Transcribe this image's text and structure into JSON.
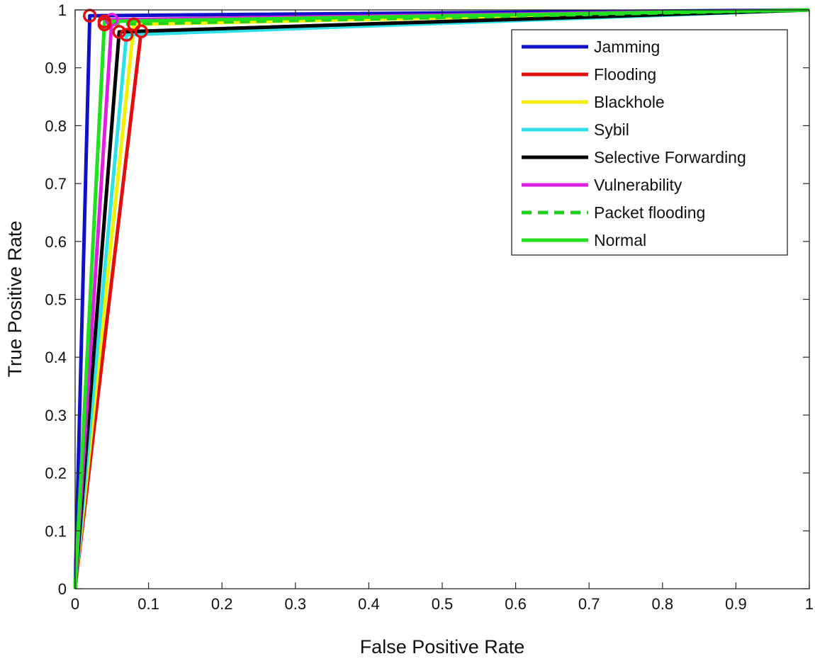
{
  "chart_data": {
    "type": "line",
    "title": "",
    "xlabel": "False Positive Rate",
    "ylabel": "True Positive Rate",
    "xlim": [
      0,
      1
    ],
    "ylim": [
      0,
      1
    ],
    "xticks": [
      "0",
      "0.1",
      "0.2",
      "0.3",
      "0.4",
      "0.5",
      "0.6",
      "0.7",
      "0.8",
      "0.9",
      "1"
    ],
    "yticks": [
      "0",
      "0.1",
      "0.2",
      "0.3",
      "0.4",
      "0.5",
      "0.6",
      "0.7",
      "0.8",
      "0.9",
      "1"
    ],
    "grid": false,
    "legend_position": "top-right",
    "series": [
      {
        "name": "Jamming",
        "color": "#1010c8",
        "dash": false,
        "x": [
          0,
          0.02,
          1
        ],
        "y": [
          0,
          0.99,
          1
        ],
        "op": [
          0.02,
          0.99
        ]
      },
      {
        "name": "Flooding",
        "color": "#e01010",
        "dash": false,
        "x": [
          0,
          0.09,
          1
        ],
        "y": [
          0,
          0.963,
          1
        ],
        "op": [
          0.09,
          0.963
        ]
      },
      {
        "name": "Blackhole",
        "color": "#f0f000",
        "dash": false,
        "x": [
          0,
          0.08,
          1
        ],
        "y": [
          0,
          0.975,
          1
        ],
        "op": [
          0.08,
          0.975
        ]
      },
      {
        "name": "Sybil",
        "color": "#30e0e8",
        "dash": false,
        "x": [
          0,
          0.07,
          1
        ],
        "y": [
          0,
          0.957,
          1
        ],
        "op": [
          0.07,
          0.957
        ]
      },
      {
        "name": "Selective Forwarding",
        "color": "#000000",
        "dash": false,
        "x": [
          0,
          0.06,
          1
        ],
        "y": [
          0,
          0.962,
          1
        ],
        "op": [
          0.06,
          0.962
        ]
      },
      {
        "name": "Vulnerability",
        "color": "#e020e0",
        "dash": false,
        "x": [
          0,
          0.05,
          1
        ],
        "y": [
          0,
          0.983,
          1
        ],
        "op": [
          0.05,
          0.983
        ]
      },
      {
        "name": "Packet flooding",
        "color": "#20d020",
        "dash": true,
        "x": [
          0,
          0.04,
          1
        ],
        "y": [
          0,
          0.975,
          1
        ],
        "op": [
          0.04,
          0.975
        ]
      },
      {
        "name": "Normal",
        "color": "#20e020",
        "dash": false,
        "x": [
          0,
          0.04,
          1
        ],
        "y": [
          0,
          0.98,
          1
        ],
        "op": [
          0.04,
          0.98
        ]
      }
    ],
    "marker_color": "#e01010"
  }
}
